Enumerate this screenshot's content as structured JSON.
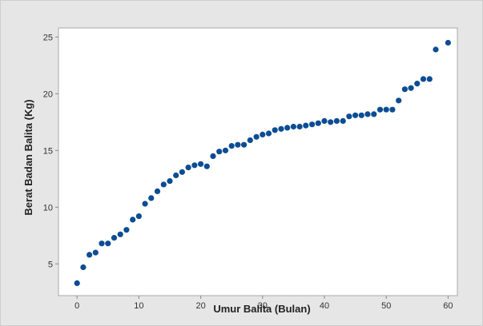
{
  "chart_data": {
    "type": "scatter",
    "title": "",
    "xlabel": "Umur Balita (Bulan)",
    "ylabel": "Berat Badan Balita (Kg)",
    "xlim": [
      -3,
      61.5
    ],
    "ylim": [
      2.2,
      25.8
    ],
    "xticks": [
      "0",
      "10",
      "20",
      "30",
      "40",
      "50",
      "60"
    ],
    "yticks": [
      "5",
      "10",
      "15",
      "20",
      "25"
    ],
    "grid": false,
    "marker_color": "#0b4d94",
    "background_color": "#e6e6e6",
    "plot_background_color": "#ffffff",
    "x": [
      0,
      1,
      2,
      3,
      4,
      5,
      6,
      7,
      8,
      9,
      10,
      11,
      12,
      13,
      14,
      15,
      16,
      17,
      18,
      19,
      20,
      21,
      22,
      23,
      24,
      25,
      26,
      27,
      28,
      29,
      30,
      31,
      32,
      33,
      34,
      35,
      36,
      37,
      38,
      39,
      40,
      41,
      42,
      43,
      44,
      45,
      46,
      47,
      48,
      49,
      50,
      51,
      52,
      53,
      54,
      55,
      56,
      57,
      58,
      60
    ],
    "y": [
      3.3,
      4.7,
      5.8,
      6.0,
      6.8,
      6.8,
      7.3,
      7.6,
      8.0,
      8.9,
      9.2,
      10.3,
      10.8,
      11.4,
      12.0,
      12.3,
      12.8,
      13.1,
      13.5,
      13.7,
      13.8,
      13.6,
      14.5,
      14.9,
      15.0,
      15.4,
      15.5,
      15.5,
      15.9,
      16.2,
      16.4,
      16.5,
      16.8,
      16.9,
      17.0,
      17.1,
      17.1,
      17.2,
      17.3,
      17.4,
      17.6,
      17.5,
      17.6,
      17.6,
      18.0,
      18.1,
      18.1,
      18.2,
      18.2,
      18.6,
      18.6,
      18.6,
      19.4,
      20.4,
      20.5,
      20.9,
      21.3,
      21.3,
      23.9,
      24.5
    ]
  }
}
